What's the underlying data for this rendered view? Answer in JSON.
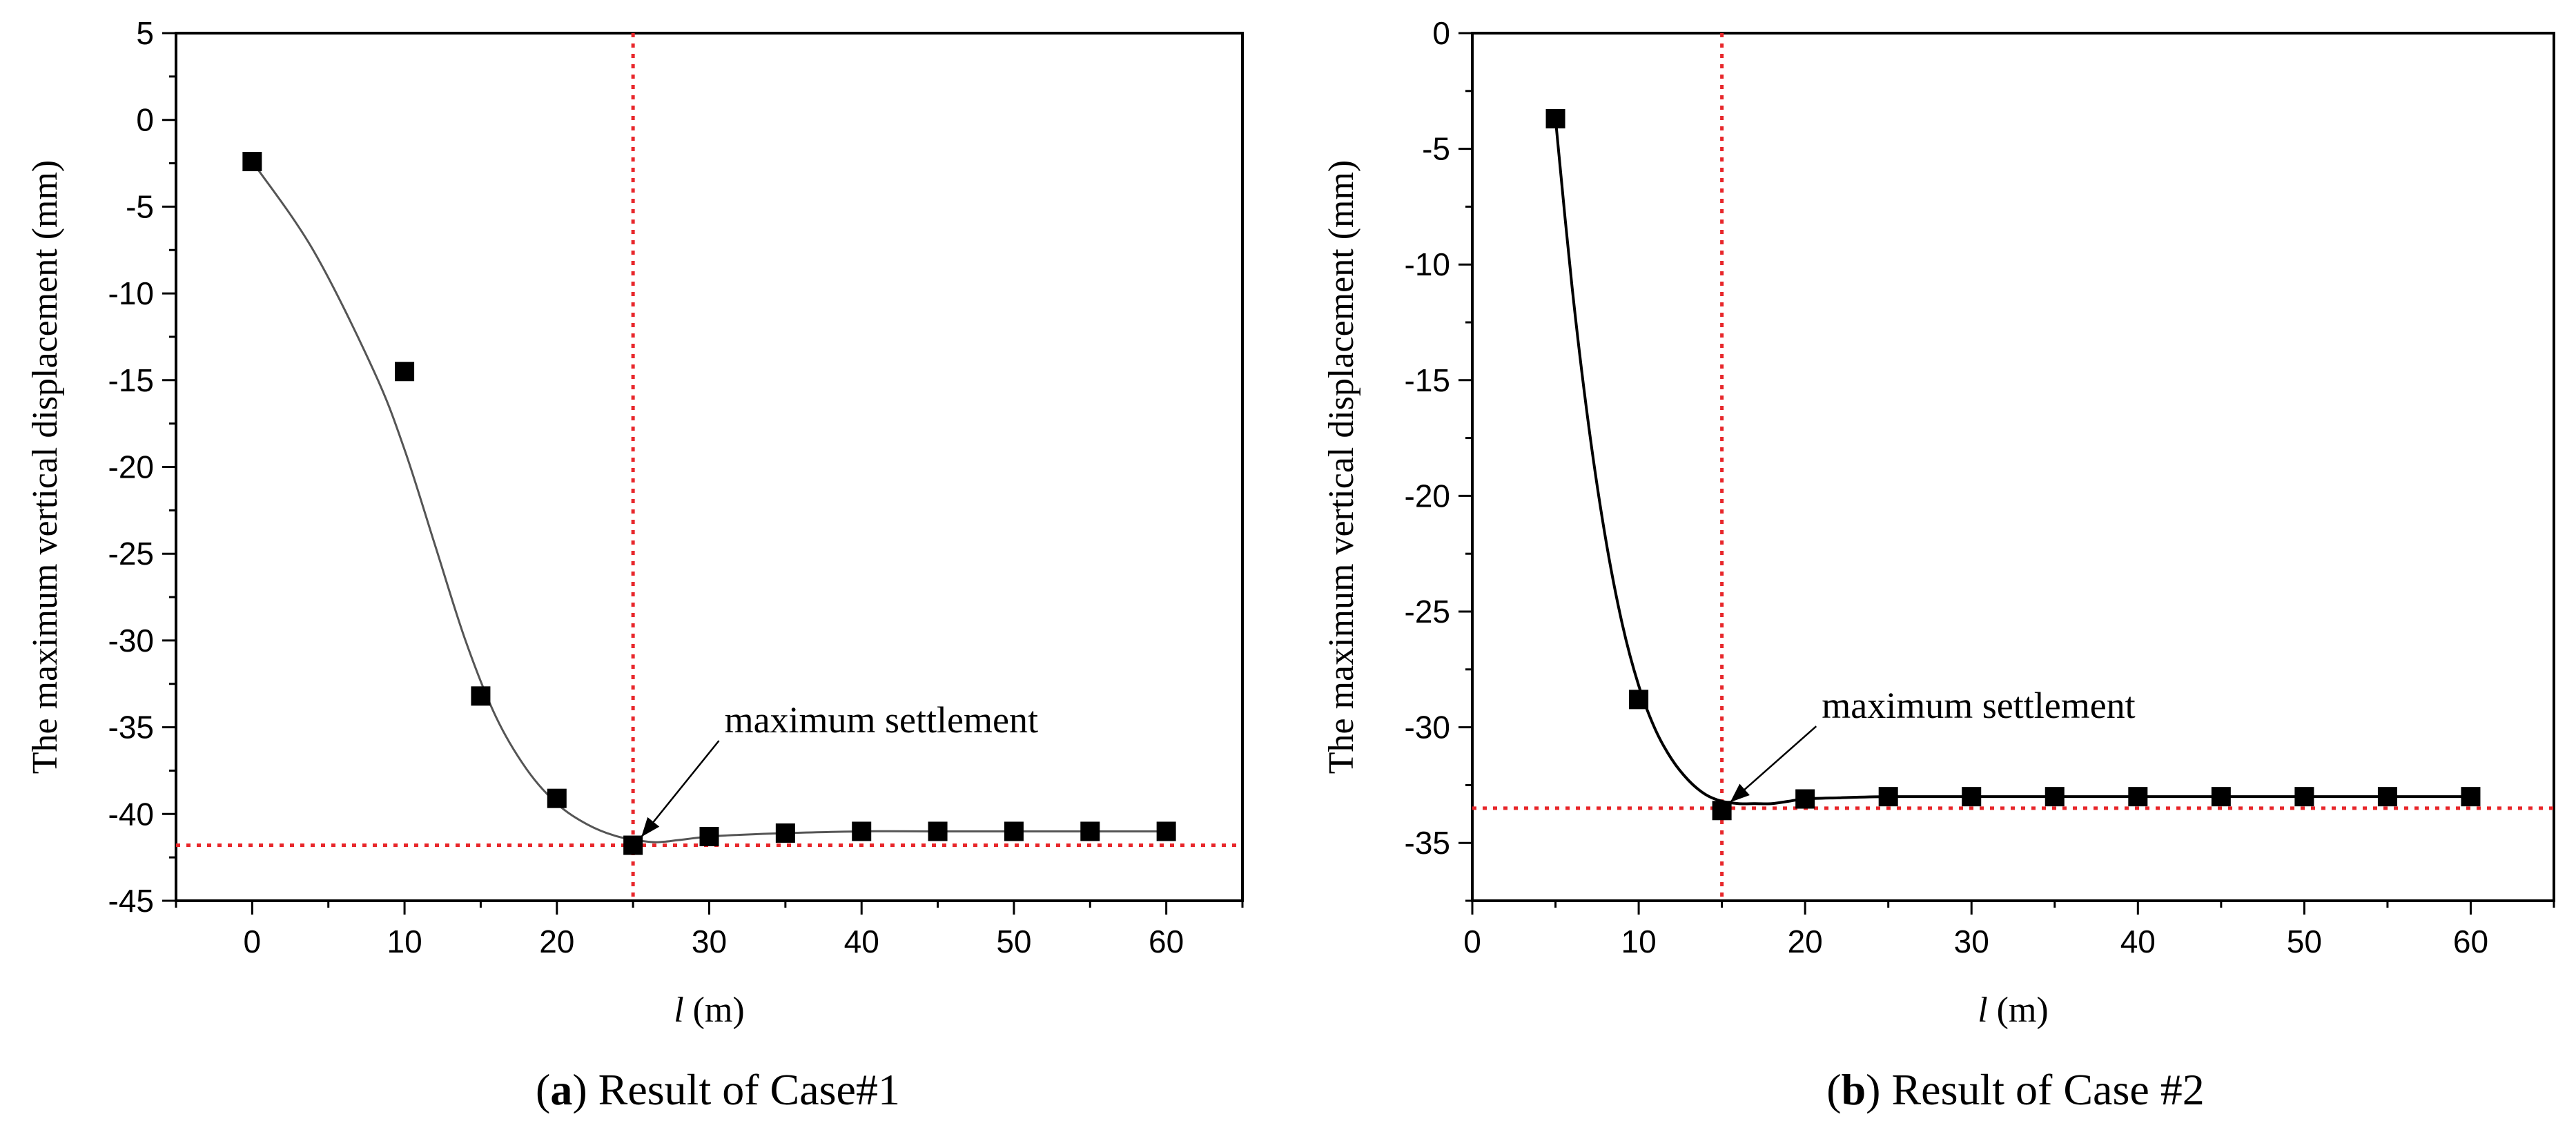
{
  "chart_data": [
    {
      "type": "scatter",
      "id": "a",
      "caption_letter": "a",
      "caption_text": " Result of Case#1",
      "xlabel_var": "l",
      "xlabel_unit": " (m)",
      "ylabel": "The maximum vertical displacement (mm)",
      "xlim": [
        -5,
        65
      ],
      "ylim": [
        -45,
        5
      ],
      "xticks": [
        0,
        10,
        20,
        30,
        40,
        50,
        60
      ],
      "yticks": [
        5,
        0,
        -5,
        -10,
        -15,
        -20,
        -25,
        -30,
        -35,
        -40,
        -45
      ],
      "grid": false,
      "series": [
        {
          "name": "data",
          "marker": "square",
          "x": [
            0,
            10,
            15,
            20,
            25,
            30,
            35,
            40,
            45,
            50,
            55,
            60
          ],
          "y": [
            -2.4,
            -14.5,
            -33.2,
            -39.1,
            -41.8,
            -41.3,
            -41.1,
            -41.0,
            -41.0,
            -41.0,
            -41.0,
            -41.0
          ]
        },
        {
          "name": "fit",
          "line": "smooth",
          "x": [
            0,
            4,
            8,
            10,
            12,
            14,
            16,
            18,
            20,
            22,
            24,
            26,
            27,
            28,
            30,
            32,
            35,
            40,
            45,
            50,
            55,
            60
          ],
          "y": [
            -2.4,
            -7.5,
            -14.5,
            -19.0,
            -24.5,
            -30.0,
            -34.4,
            -37.4,
            -39.4,
            -40.6,
            -41.3,
            -41.6,
            -41.6,
            -41.5,
            -41.3,
            -41.2,
            -41.1,
            -41.0,
            -41.0,
            -41.0,
            -41.0,
            -41.0
          ]
        }
      ],
      "reference_lines": {
        "x": 25,
        "y": -41.8,
        "color": "#e8262a"
      },
      "annotation": {
        "text": "maximum settlement",
        "point": [
          25,
          -41.8
        ],
        "text_at": [
          31,
          -35.3
        ]
      }
    },
    {
      "type": "scatter",
      "id": "b",
      "caption_letter": "b",
      "caption_text": " Result of Case #2",
      "xlabel_var": "l",
      "xlabel_unit": " (m)",
      "ylabel": "The maximum vertical displacement (mm)",
      "xlim": [
        0,
        65
      ],
      "ylim": [
        -37.5,
        0
      ],
      "xticks": [
        0,
        10,
        20,
        30,
        40,
        50,
        60
      ],
      "yticks": [
        0,
        -5,
        -10,
        -15,
        -20,
        -25,
        -30,
        -35
      ],
      "grid": false,
      "series": [
        {
          "name": "data",
          "marker": "square",
          "x": [
            5,
            10,
            15,
            20,
            25,
            30,
            35,
            40,
            45,
            50,
            55,
            60
          ],
          "y": [
            -3.7,
            -28.8,
            -33.6,
            -33.1,
            -33.0,
            -33.0,
            -33.0,
            -33.0,
            -33.0,
            -33.0,
            -33.0,
            -33.0
          ]
        },
        {
          "name": "fit",
          "line": "smooth",
          "x": [
            5,
            6,
            7,
            8,
            9,
            10,
            11,
            12,
            13,
            14,
            15,
            16,
            17,
            18,
            19,
            20,
            22,
            25,
            30,
            40,
            50,
            60
          ],
          "y": [
            -3.7,
            -11.0,
            -17.0,
            -21.8,
            -25.5,
            -28.2,
            -30.1,
            -31.4,
            -32.3,
            -32.9,
            -33.2,
            -33.3,
            -33.3,
            -33.3,
            -33.2,
            -33.1,
            -33.05,
            -33.0,
            -33.0,
            -33.0,
            -33.0,
            -33.0
          ]
        }
      ],
      "reference_lines": {
        "x": 15,
        "y": -33.5,
        "color": "#e8262a"
      },
      "annotation": {
        "text": "maximum settlement",
        "point": [
          15,
          -33.6
        ],
        "text_at": [
          21,
          -29.6
        ]
      }
    }
  ]
}
